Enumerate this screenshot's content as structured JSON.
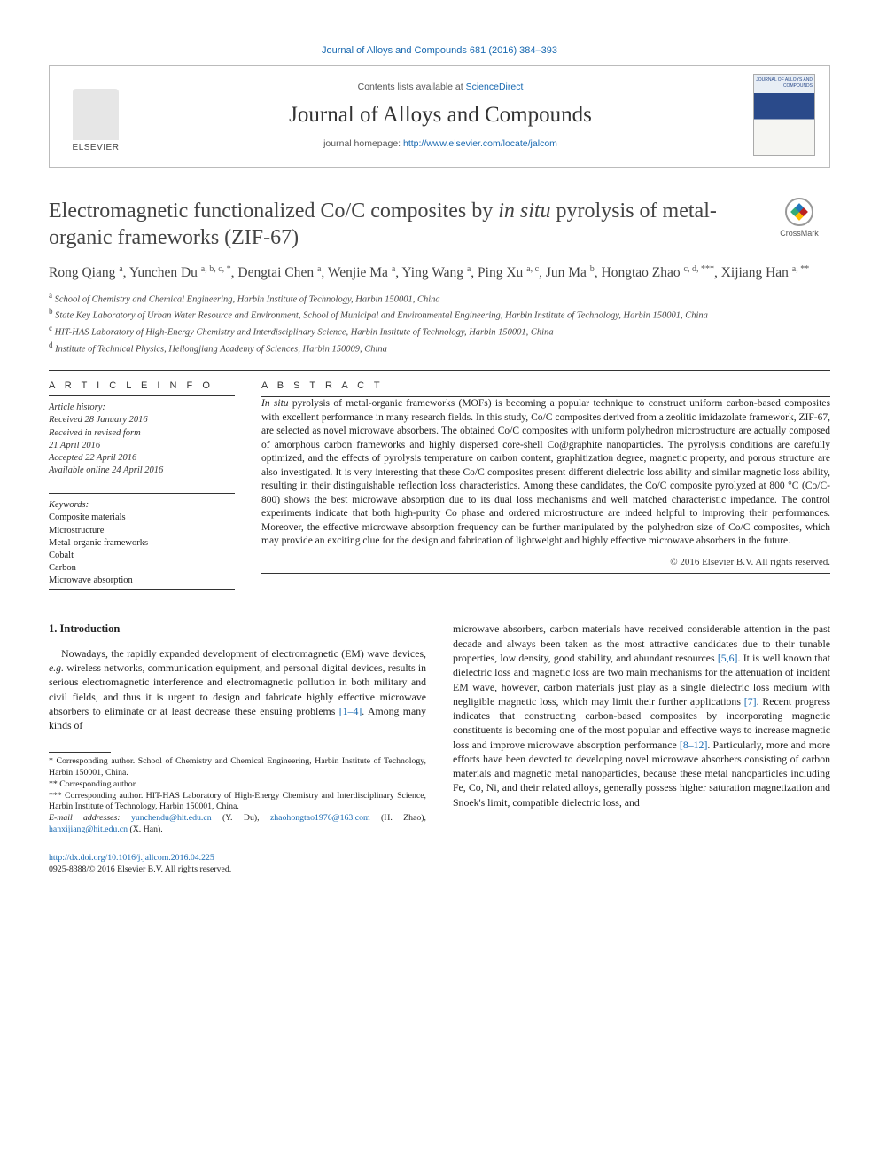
{
  "citation": "Journal of Alloys and Compounds 681 (2016) 384–393",
  "header": {
    "contents_prefix": "Contents lists available at ",
    "contents_link": "ScienceDirect",
    "journal_name": "Journal of Alloys and Compounds",
    "homepage_prefix": "journal homepage: ",
    "homepage_url": "http://www.elsevier.com/locate/jalcom",
    "publisher": "ELSEVIER",
    "cover_label": "JOURNAL OF ALLOYS AND COMPOUNDS"
  },
  "crossmark": "CrossMark",
  "title_pre": "Electromagnetic functionalized Co/C composites by ",
  "title_em": "in situ",
  "title_post": " pyrolysis of metal-organic frameworks (ZIF-67)",
  "authors_html": "Rong Qiang <sup>a</sup>, Yunchen Du <sup>a, b, c, *</sup>, Dengtai Chen <sup>a</sup>, Wenjie Ma <sup>a</sup>, Ying Wang <sup>a</sup>, Ping Xu <sup>a, c</sup>, Jun Ma <sup>b</sup>, Hongtao Zhao <sup>c, d, ***</sup>, Xijiang Han <sup>a, **</sup>",
  "affiliations": [
    {
      "sup": "a",
      "text": "School of Chemistry and Chemical Engineering, Harbin Institute of Technology, Harbin 150001, China"
    },
    {
      "sup": "b",
      "text": "State Key Laboratory of Urban Water Resource and Environment, School of Municipal and Environmental Engineering, Harbin Institute of Technology, Harbin 150001, China"
    },
    {
      "sup": "c",
      "text": "HIT-HAS Laboratory of High-Energy Chemistry and Interdisciplinary Science, Harbin Institute of Technology, Harbin 150001, China"
    },
    {
      "sup": "d",
      "text": "Institute of Technical Physics, Heilongjiang Academy of Sciences, Harbin 150009, China"
    }
  ],
  "article_info_label": "A R T I C L E  I N F O",
  "abstract_label": "A B S T R A C T",
  "history": {
    "label": "Article history:",
    "received": "Received 28 January 2016",
    "revised": "Received in revised form",
    "revised_date": "21 April 2016",
    "accepted": "Accepted 22 April 2016",
    "online": "Available online 24 April 2016"
  },
  "keywords_label": "Keywords:",
  "keywords": [
    "Composite materials",
    "Microstructure",
    "Metal-organic frameworks",
    "Cobalt",
    "Carbon",
    "Microwave absorption"
  ],
  "abstract_em": "In situ",
  "abstract_text": " pyrolysis of metal-organic frameworks (MOFs) is becoming a popular technique to construct uniform carbon-based composites with excellent performance in many research fields. In this study, Co/C composites derived from a zeolitic imidazolate framework, ZIF-67, are selected as novel microwave absorbers. The obtained Co/C composites with uniform polyhedron microstructure are actually composed of amorphous carbon frameworks and highly dispersed core-shell Co@graphite nanoparticles. The pyrolysis conditions are carefully optimized, and the effects of pyrolysis temperature on carbon content, graphitization degree, magnetic property, and porous structure are also investigated. It is very interesting that these Co/C composites present different dielectric loss ability and similar magnetic loss ability, resulting in their distinguishable reflection loss characteristics. Among these candidates, the Co/C composite pyrolyzed at 800 °C (Co/C-800) shows the best microwave absorption due to its dual loss mechanisms and well matched characteristic impedance. The control experiments indicate that both high-purity Co phase and ordered microstructure are indeed helpful to improving their performances. Moreover, the effective microwave absorption frequency can be further manipulated by the polyhedron size of Co/C composites, which may provide an exciting clue for the design and fabrication of lightweight and highly effective microwave absorbers in the future.",
  "copyright": "© 2016 Elsevier B.V. All rights reserved.",
  "intro_heading": "1. Introduction",
  "intro_p1_a": "Nowadays, the rapidly expanded development of electromagnetic (EM) wave devices, ",
  "intro_p1_eg": "e.g.",
  "intro_p1_b": " wireless networks, communication equipment, and personal digital devices, results in serious electromagnetic interference and electromagnetic pollution in both military and civil fields, and thus it is urgent to design and fabricate highly effective microwave absorbers to eliminate or at least decrease these ensuing problems ",
  "intro_ref1": "[1–4]",
  "intro_p1_c": ". Among many kinds of",
  "col2_a": "microwave absorbers, carbon materials have received considerable attention in the past decade and always been taken as the most attractive candidates due to their tunable properties, low density, good stability, and abundant resources ",
  "col2_ref1": "[5,6]",
  "col2_b": ". It is well known that dielectric loss and magnetic loss are two main mechanisms for the attenuation of incident EM wave, however, carbon materials just play as a single dielectric loss medium with negligible magnetic loss, which may limit their further applications ",
  "col2_ref2": "[7]",
  "col2_c": ". Recent progress indicates that constructing carbon-based composites by incorporating magnetic constituents is becoming one of the most popular and effective ways to increase magnetic loss and improve microwave absorption performance ",
  "col2_ref3": "[8–12]",
  "col2_d": ". Particularly, more and more efforts have been devoted to developing novel microwave absorbers consisting of carbon materials and magnetic metal nanoparticles, because these metal nanoparticles including Fe, Co, Ni, and their related alloys, generally possess higher saturation magnetization and Snoek's limit, compatible dielectric loss, and",
  "footnotes": {
    "c1": "* Corresponding author. School of Chemistry and Chemical Engineering, Harbin Institute of Technology, Harbin 150001, China.",
    "c2": "** Corresponding author.",
    "c3": "*** Corresponding author. HIT-HAS Laboratory of High-Energy Chemistry and Interdisciplinary Science, Harbin Institute of Technology, Harbin 150001, China.",
    "emails_label": "E-mail addresses: ",
    "e1": "yunchendu@hit.edu.cn",
    "e1_who": " (Y. Du), ",
    "e2": "zhaohongtao1976@163.com",
    "e2_who": " (H. Zhao), ",
    "e3": "hanxijiang@hit.edu.cn",
    "e3_who": " (X. Han)."
  },
  "footer": {
    "doi": "http://dx.doi.org/10.1016/j.jallcom.2016.04.225",
    "issn": "0925-8388/© 2016 Elsevier B.V. All rights reserved."
  },
  "colors": {
    "link": "#1768b0",
    "text": "#222222",
    "rule": "#333333"
  }
}
